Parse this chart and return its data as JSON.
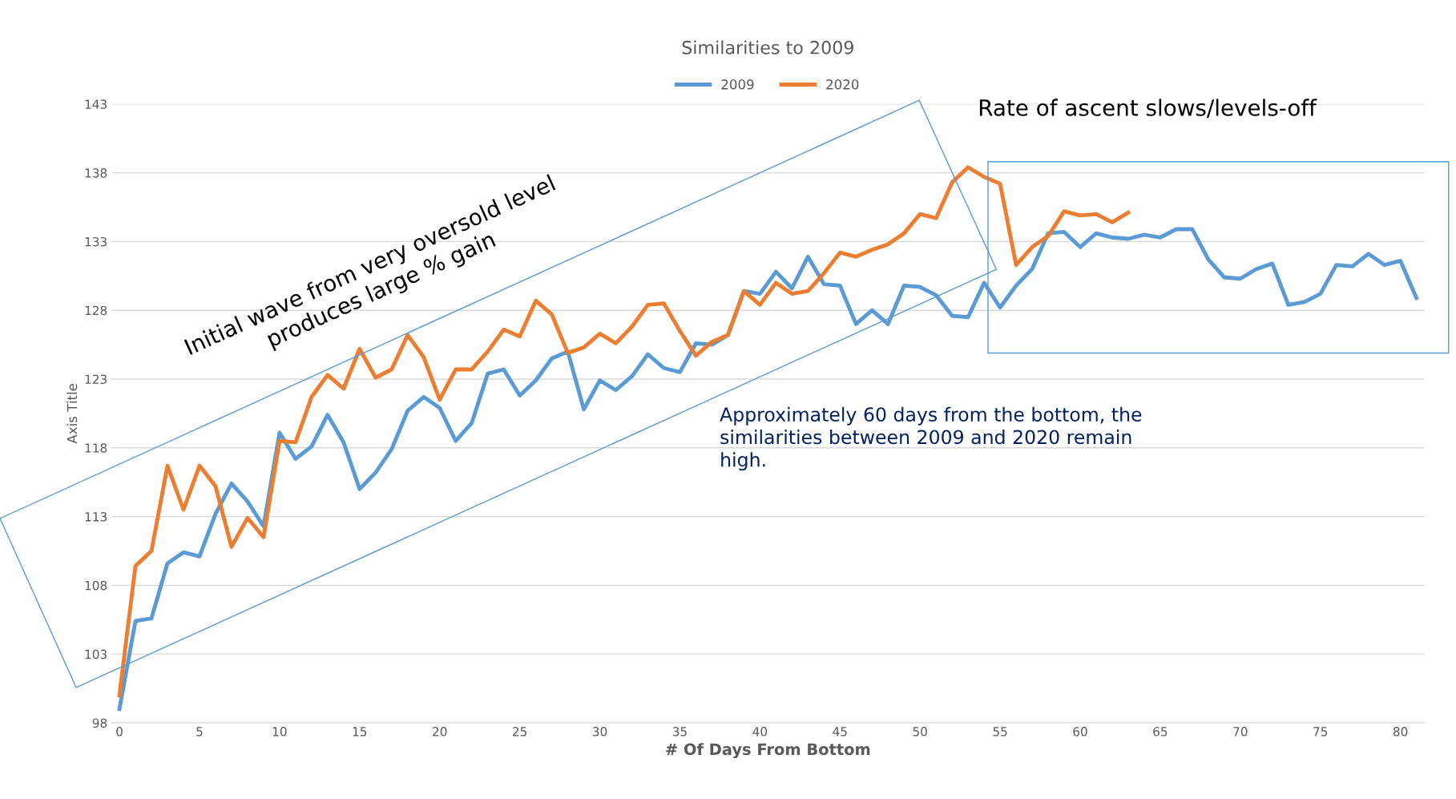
{
  "chart_data": {
    "type": "line",
    "title": "Similarities to 2009",
    "xlabel": "# Of Days From Bottom",
    "ylabel": "Axis Title",
    "x": [
      0,
      1,
      2,
      3,
      4,
      5,
      6,
      7,
      8,
      9,
      10,
      11,
      12,
      13,
      14,
      15,
      16,
      17,
      18,
      19,
      20,
      21,
      22,
      23,
      24,
      25,
      26,
      27,
      28,
      29,
      30,
      31,
      32,
      33,
      34,
      35,
      36,
      37,
      38,
      39,
      40,
      41,
      42,
      43,
      44,
      45,
      46,
      47,
      48,
      49,
      50,
      51,
      52,
      53,
      54,
      55,
      56,
      57,
      58,
      59,
      60,
      61,
      62,
      63,
      64,
      65,
      66,
      67,
      68,
      69,
      70,
      71,
      72,
      73,
      74,
      75,
      76,
      77,
      78,
      79,
      80,
      81
    ],
    "series": [
      {
        "name": "2009",
        "color": "#5b9bd5",
        "values": [
          99.0,
          105.4,
          105.6,
          109.6,
          110.4,
          110.1,
          113.2,
          115.4,
          114.1,
          112.3,
          119.1,
          117.2,
          118.1,
          120.4,
          118.4,
          115.0,
          116.2,
          117.9,
          120.7,
          121.7,
          120.9,
          118.5,
          119.8,
          123.4,
          123.7,
          121.8,
          122.9,
          124.5,
          125.0,
          120.8,
          122.9,
          122.2,
          123.2,
          124.8,
          123.8,
          123.5,
          125.6,
          125.5,
          126.2,
          129.4,
          129.2,
          130.8,
          129.6,
          131.9,
          129.9,
          129.8,
          127.0,
          128.0,
          127.0,
          129.8,
          129.7,
          129.1,
          127.6,
          127.5,
          130.0,
          128.2,
          129.8,
          131.0,
          133.6,
          133.7,
          132.6,
          133.6,
          133.3,
          133.2,
          133.5,
          133.3,
          133.9,
          133.9,
          131.7,
          130.4,
          130.3,
          131.0,
          131.4,
          128.4,
          128.6,
          129.2,
          131.3,
          131.2,
          132.1,
          131.3,
          131.6,
          128.9
        ]
      },
      {
        "name": "2020",
        "color": "#ed7d31",
        "values": [
          100.0,
          109.4,
          110.5,
          116.7,
          113.5,
          116.7,
          115.2,
          110.8,
          112.9,
          111.5,
          118.5,
          118.4,
          121.7,
          123.3,
          122.3,
          125.2,
          123.1,
          123.7,
          126.2,
          124.6,
          121.5,
          123.7,
          123.7,
          125.0,
          126.6,
          126.1,
          128.7,
          127.7,
          124.9,
          125.3,
          126.3,
          125.6,
          126.8,
          128.4,
          128.5,
          126.5,
          124.7,
          125.7,
          126.2,
          129.4,
          128.4,
          130.0,
          129.2,
          129.4,
          130.7,
          132.2,
          131.9,
          132.4,
          132.8,
          133.6,
          135.0,
          134.7,
          137.3,
          138.4,
          137.7,
          137.2,
          131.3,
          132.6,
          133.4,
          135.2,
          134.9,
          135.0,
          134.4,
          135.1,
          null,
          null,
          null,
          null,
          null,
          null,
          null,
          null,
          null,
          null,
          null,
          null,
          null,
          null,
          null,
          null,
          null,
          null
        ]
      }
    ],
    "xlim": [
      -0.5,
      81.5
    ],
    "xticks": [
      0,
      5,
      10,
      15,
      20,
      25,
      30,
      35,
      40,
      45,
      50,
      55,
      60,
      65,
      70,
      75,
      80
    ],
    "ylim": [
      98,
      143
    ],
    "yticks": [
      98,
      103,
      108,
      113,
      118,
      123,
      128,
      133,
      138,
      143
    ],
    "grid": "y",
    "legend": "top",
    "marker": "none",
    "line_style": "solid",
    "annotations": [
      "Initial wave from very oversold level\nproduces large % gain",
      "Rate of ascent slows/levels-off",
      "Approximately 60 days from the bottom, the\nsimilarities between 2009 and 2020 remain\nhigh."
    ]
  }
}
